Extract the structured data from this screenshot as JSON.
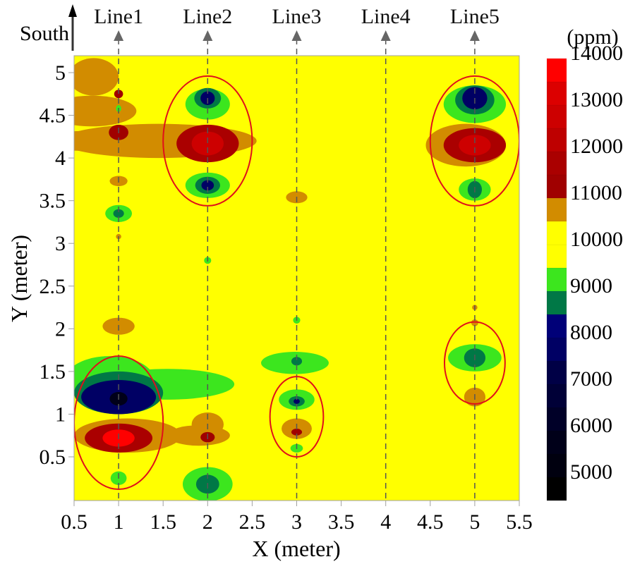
{
  "chart_data": {
    "type": "heatmap",
    "subtype": "filled-contour",
    "title": "",
    "xlabel": "X (meter)",
    "ylabel": "Y (meter)",
    "xlim": [
      0.5,
      5.5
    ],
    "ylim": [
      0.0,
      5.2
    ],
    "xticks": [
      "0.5",
      "1",
      "1.5",
      "2",
      "2.5",
      "3",
      "3.5",
      "4",
      "4.5",
      "5",
      "5.5"
    ],
    "yticks": [
      "0.5",
      "1",
      "1.5",
      "2",
      "2.5",
      "3",
      "3.5",
      "4",
      "4.5",
      "5"
    ],
    "direction_label": "South",
    "background_level_ppm": 9750,
    "survey_lines": [
      {
        "name": "Line1",
        "x": 1
      },
      {
        "name": "Line2",
        "x": 2
      },
      {
        "name": "Line3",
        "x": 3
      },
      {
        "name": "Line4",
        "x": 4
      },
      {
        "name": "Line5",
        "x": 5
      }
    ],
    "colorbar": {
      "unit": "(ppm)",
      "min": 4500,
      "max": 14000,
      "step": 500,
      "tick_labels": [
        "14000",
        "13000",
        "12000",
        "11000",
        "10000",
        "9000",
        "8000",
        "7000",
        "6000",
        "5000"
      ],
      "bands": [
        {
          "from": 4500,
          "to": 5000,
          "color": "#000000"
        },
        {
          "from": 5000,
          "to": 5500,
          "color": "#00000f"
        },
        {
          "from": 5500,
          "to": 6000,
          "color": "#000019"
        },
        {
          "from": 6000,
          "to": 6500,
          "color": "#000028"
        },
        {
          "from": 6500,
          "to": 7000,
          "color": "#000037"
        },
        {
          "from": 7000,
          "to": 7500,
          "color": "#000046"
        },
        {
          "from": 7500,
          "to": 8000,
          "color": "#000064"
        },
        {
          "from": 8000,
          "to": 8500,
          "color": "#000078"
        },
        {
          "from": 8500,
          "to": 9000,
          "color": "#007846"
        },
        {
          "from": 9000,
          "to": 9500,
          "color": "#3ce61e"
        },
        {
          "from": 9500,
          "to": 10000,
          "color": "#ffff00"
        },
        {
          "from": 10000,
          "to": 10500,
          "color": "#ffff00"
        },
        {
          "from": 10500,
          "to": 11000,
          "color": "#d28c00"
        },
        {
          "from": 11000,
          "to": 11500,
          "color": "#a00000"
        },
        {
          "from": 11500,
          "to": 12000,
          "color": "#aa0000"
        },
        {
          "from": 12000,
          "to": 12500,
          "color": "#be0000"
        },
        {
          "from": 12500,
          "to": 13000,
          "color": "#cd0000"
        },
        {
          "from": 13000,
          "to": 13500,
          "color": "#dc0000"
        },
        {
          "from": 13500,
          "to": 14000,
          "color": "#ff0000"
        }
      ]
    },
    "anomalies": [
      {
        "x": 0.72,
        "y": 4.95,
        "rx": 0.28,
        "ry": 0.22,
        "value": 10700
      },
      {
        "x": 0.8,
        "y": 4.2,
        "rx": 0.9,
        "ry": 0.12,
        "value": 10700
      },
      {
        "x": 1.45,
        "y": 4.2,
        "rx": 1.1,
        "ry": 0.2,
        "value": 10700
      },
      {
        "x": 0.7,
        "y": 4.55,
        "rx": 0.5,
        "ry": 0.18,
        "value": 10700
      },
      {
        "x": 1.0,
        "y": 4.75,
        "rx": 0.05,
        "ry": 0.05,
        "value": 11300
      },
      {
        "x": 1.0,
        "y": 4.58,
        "rx": 0.03,
        "ry": 0.04,
        "value": 9200
      },
      {
        "x": 1.0,
        "y": 4.3,
        "rx": 0.11,
        "ry": 0.09,
        "value": 11300
      },
      {
        "x": 1.0,
        "y": 3.73,
        "rx": 0.1,
        "ry": 0.06,
        "value": 10700
      },
      {
        "x": 1.0,
        "y": 3.35,
        "rx": 0.15,
        "ry": 0.1,
        "value": 9200
      },
      {
        "x": 1.0,
        "y": 3.35,
        "rx": 0.06,
        "ry": 0.05,
        "value": 8700
      },
      {
        "x": 1.0,
        "y": 3.08,
        "rx": 0.03,
        "ry": 0.03,
        "value": 10700
      },
      {
        "x": 1.0,
        "y": 2.03,
        "rx": 0.18,
        "ry": 0.1,
        "value": 10700
      },
      {
        "x": 2.0,
        "y": 4.63,
        "rx": 0.25,
        "ry": 0.18,
        "value": 9200
      },
      {
        "x": 2.0,
        "y": 4.7,
        "rx": 0.15,
        "ry": 0.12,
        "value": 8700
      },
      {
        "x": 2.0,
        "y": 4.7,
        "rx": 0.08,
        "ry": 0.08,
        "value": 7800
      },
      {
        "x": 2.0,
        "y": 4.17,
        "rx": 0.35,
        "ry": 0.22,
        "value": 11800
      },
      {
        "x": 2.0,
        "y": 4.17,
        "rx": 0.18,
        "ry": 0.14,
        "value": 12800
      },
      {
        "x": 2.0,
        "y": 3.68,
        "rx": 0.25,
        "ry": 0.15,
        "value": 9200
      },
      {
        "x": 2.0,
        "y": 3.68,
        "rx": 0.14,
        "ry": 0.1,
        "value": 8700
      },
      {
        "x": 2.0,
        "y": 3.68,
        "rx": 0.07,
        "ry": 0.06,
        "value": 7800
      },
      {
        "x": 2.0,
        "y": 2.8,
        "rx": 0.04,
        "ry": 0.04,
        "value": 9200
      },
      {
        "x": 2.0,
        "y": 0.18,
        "rx": 0.28,
        "ry": 0.2,
        "value": 9200
      },
      {
        "x": 2.0,
        "y": 0.18,
        "rx": 0.13,
        "ry": 0.11,
        "value": 8700
      },
      {
        "x": 3.0,
        "y": 3.54,
        "rx": 0.12,
        "ry": 0.07,
        "value": 10700
      },
      {
        "x": 3.0,
        "y": 2.1,
        "rx": 0.04,
        "ry": 0.04,
        "value": 9200
      },
      {
        "x": 2.98,
        "y": 1.6,
        "rx": 0.38,
        "ry": 0.13,
        "value": 9200
      },
      {
        "x": 3.0,
        "y": 1.62,
        "rx": 0.06,
        "ry": 0.05,
        "value": 8700
      },
      {
        "x": 3.0,
        "y": 1.17,
        "rx": 0.2,
        "ry": 0.12,
        "value": 9200
      },
      {
        "x": 3.0,
        "y": 1.15,
        "rx": 0.09,
        "ry": 0.06,
        "value": 8700
      },
      {
        "x": 3.0,
        "y": 1.15,
        "rx": 0.035,
        "ry": 0.03,
        "value": 7500
      },
      {
        "x": 3.0,
        "y": 0.83,
        "rx": 0.17,
        "ry": 0.12,
        "value": 10700
      },
      {
        "x": 3.0,
        "y": 0.79,
        "rx": 0.06,
        "ry": 0.04,
        "value": 11300
      },
      {
        "x": 3.0,
        "y": 0.6,
        "rx": 0.07,
        "ry": 0.05,
        "value": 9200
      },
      {
        "x": 5.0,
        "y": 4.63,
        "rx": 0.35,
        "ry": 0.22,
        "value": 9200
      },
      {
        "x": 5.0,
        "y": 4.68,
        "rx": 0.22,
        "ry": 0.17,
        "value": 8700
      },
      {
        "x": 5.0,
        "y": 4.7,
        "rx": 0.14,
        "ry": 0.13,
        "value": 7800
      },
      {
        "x": 4.9,
        "y": 4.15,
        "rx": 0.45,
        "ry": 0.25,
        "value": 10700
      },
      {
        "x": 5.0,
        "y": 4.15,
        "rx": 0.35,
        "ry": 0.2,
        "value": 11800
      },
      {
        "x": 5.0,
        "y": 4.15,
        "rx": 0.18,
        "ry": 0.12,
        "value": 12800
      },
      {
        "x": 5.0,
        "y": 3.63,
        "rx": 0.18,
        "ry": 0.13,
        "value": 9200
      },
      {
        "x": 5.0,
        "y": 3.63,
        "rx": 0.08,
        "ry": 0.1,
        "value": 8700
      },
      {
        "x": 5.0,
        "y": 2.25,
        "rx": 0.03,
        "ry": 0.03,
        "value": 10700
      },
      {
        "x": 5.0,
        "y": 2.07,
        "rx": 0.04,
        "ry": 0.04,
        "value": 10700
      },
      {
        "x": 5.0,
        "y": 1.66,
        "rx": 0.3,
        "ry": 0.16,
        "value": 9200
      },
      {
        "x": 5.0,
        "y": 1.66,
        "rx": 0.12,
        "ry": 0.11,
        "value": 8700
      },
      {
        "x": 5.0,
        "y": 1.2,
        "rx": 0.12,
        "ry": 0.11,
        "value": 10700
      },
      {
        "x": 0.9,
        "y": 1.4,
        "rx": 0.5,
        "ry": 0.28,
        "value": 9200
      },
      {
        "x": 1.55,
        "y": 1.35,
        "rx": 0.75,
        "ry": 0.18,
        "value": 9200
      },
      {
        "x": 1.0,
        "y": 1.25,
        "rx": 0.5,
        "ry": 0.25,
        "value": 8700
      },
      {
        "x": 1.0,
        "y": 1.2,
        "rx": 0.42,
        "ry": 0.2,
        "value": 7800
      },
      {
        "x": 1.0,
        "y": 1.18,
        "rx": 0.1,
        "ry": 0.08,
        "value": 5500
      },
      {
        "x": 1.1,
        "y": 0.75,
        "rx": 0.6,
        "ry": 0.2,
        "value": 10700
      },
      {
        "x": 1.9,
        "y": 0.75,
        "rx": 0.35,
        "ry": 0.12,
        "value": 10700
      },
      {
        "x": 2.0,
        "y": 0.88,
        "rx": 0.18,
        "ry": 0.14,
        "value": 10700
      },
      {
        "x": 1.0,
        "y": 0.72,
        "rx": 0.38,
        "ry": 0.17,
        "value": 11800
      },
      {
        "x": 1.0,
        "y": 0.72,
        "rx": 0.18,
        "ry": 0.1,
        "value": 13500
      },
      {
        "x": 2.0,
        "y": 0.73,
        "rx": 0.08,
        "ry": 0.06,
        "value": 11300
      },
      {
        "x": 1.0,
        "y": 0.25,
        "rx": 0.09,
        "ry": 0.08,
        "value": 9200
      }
    ],
    "highlight_ellipses": [
      {
        "cx": 2.0,
        "cy": 4.2,
        "rx": 0.5,
        "ry": 0.76
      },
      {
        "cx": 5.0,
        "cy": 4.2,
        "rx": 0.5,
        "ry": 0.76
      },
      {
        "cx": 1.0,
        "cy": 0.9,
        "rx": 0.5,
        "ry": 0.78
      },
      {
        "cx": 3.0,
        "cy": 0.97,
        "rx": 0.3,
        "ry": 0.47
      },
      {
        "cx": 5.0,
        "cy": 1.6,
        "rx": 0.34,
        "ry": 0.48
      }
    ]
  }
}
